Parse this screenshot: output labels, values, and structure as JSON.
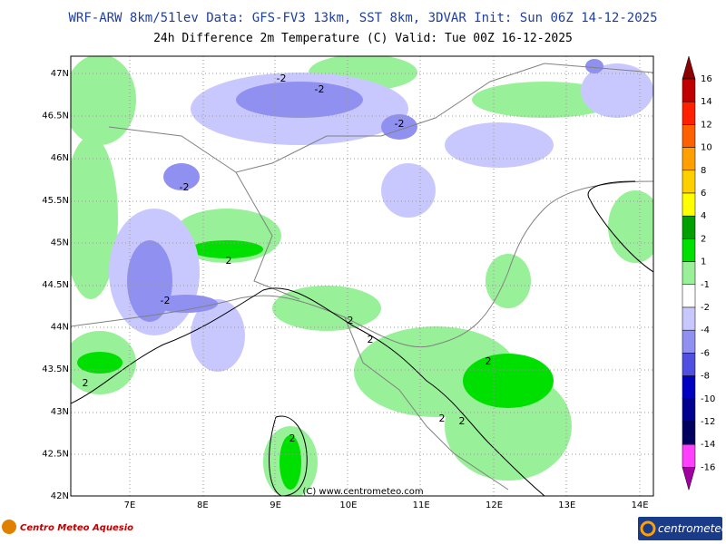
{
  "header": {
    "title": "WRF-ARW 8km/51lev  Data: GFS-FV3 13km, SST 8km, 3DVAR  Init: Sun 06Z 14-12-2025",
    "subtitle": "24h Difference 2m Temperature (C)  Valid: Tue 00Z 16-12-2025"
  },
  "map": {
    "lat_labels": [
      "47N",
      "46.5N",
      "46N",
      "45.5N",
      "45N",
      "44.5N",
      "44N",
      "43.5N",
      "43N",
      "42.5N",
      "42N"
    ],
    "lon_labels": [
      "7E",
      "8E",
      "9E",
      "10E",
      "11E",
      "12E",
      "13E",
      "14E"
    ],
    "contour_labels": [
      "-2",
      "-2",
      "-2",
      "-2",
      "-2",
      "2",
      "2",
      "2",
      "2",
      "2",
      "2",
      "2",
      "2"
    ],
    "copyright": "(C) www.centrometeo.com"
  },
  "colorbar": {
    "labels": [
      "16",
      "14",
      "12",
      "10",
      "8",
      "6",
      "4",
      "2",
      "1",
      "-1",
      "-2",
      "-4",
      "-6",
      "-8",
      "-10",
      "-12",
      "-14",
      "-16"
    ],
    "colors": [
      "#8b0000",
      "#c00000",
      "#ff2000",
      "#ff6000",
      "#ffa000",
      "#ffd000",
      "#ffff00",
      "#00a000",
      "#00e000",
      "#98f098",
      "#ffffff",
      "#c8c8ff",
      "#9090f0",
      "#5050e0",
      "#0000c0",
      "#000090",
      "#000060",
      "#ff40ff",
      "#a000a0"
    ]
  },
  "footer": {
    "left_logo": "Centro Meteo Aquesio",
    "right_logo": "centrometeo"
  }
}
